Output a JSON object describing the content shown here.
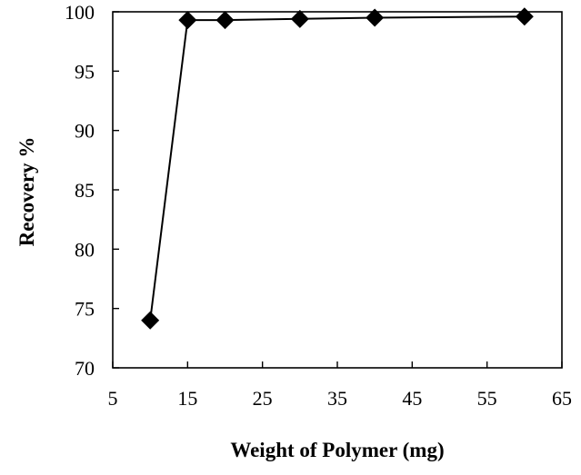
{
  "chart_data": {
    "type": "line",
    "xlabel": "Weight of Polymer (mg)",
    "ylabel": "Recovery %",
    "xlim": [
      5,
      65
    ],
    "ylim": [
      70,
      100
    ],
    "xticks": [
      5,
      15,
      25,
      35,
      45,
      55,
      65
    ],
    "yticks": [
      70,
      75,
      80,
      85,
      90,
      95,
      100
    ],
    "grid": false,
    "marker": "diamond",
    "series": [
      {
        "x": [
          10,
          15,
          20,
          30,
          40,
          60
        ],
        "y": [
          74,
          99.3,
          99.3,
          99.4,
          99.5,
          99.6
        ],
        "color": "#000000"
      }
    ]
  }
}
